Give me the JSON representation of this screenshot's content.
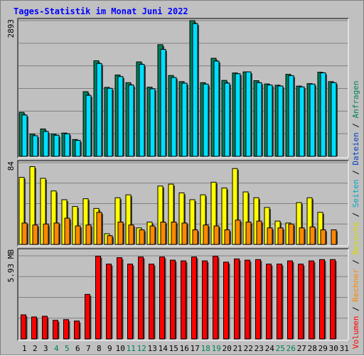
{
  "chart_data": {
    "type": "bar",
    "title": "Tages-Statistik im Monat Juni 2022",
    "categories": [
      "1",
      "2",
      "3",
      "4",
      "5",
      "6",
      "7",
      "8",
      "9",
      "10",
      "11",
      "12",
      "13",
      "14",
      "15",
      "16",
      "17",
      "18",
      "19",
      "20",
      "21",
      "22",
      "23",
      "24",
      "25",
      "26",
      "27",
      "28",
      "29",
      "30",
      "31"
    ],
    "weekend_days": [
      "4",
      "5",
      "11",
      "12",
      "18",
      "19",
      "25",
      "26"
    ],
    "panels": [
      {
        "id": "requests",
        "ymax_label": "2893",
        "ymax": 2893,
        "grid": true,
        "series": [
          {
            "name": "Anfragen",
            "color": "#00805c",
            "values": [
              937,
              474,
              584,
              474,
              497,
              359,
              1378,
              2037,
              1470,
              1734,
              1570,
              2013,
              1474,
              2380,
              1723,
              1593,
              2893,
              1570,
              2090,
              1619,
              1777,
              1800,
              1613,
              1543,
              1516,
              1748,
              1498,
              1550,
              1793,
              1593,
              null
            ]
          },
          {
            "name": "Seiten",
            "color": "#00e0ff",
            "values": [
              880,
              440,
              530,
              450,
              480,
              340,
              1300,
              1980,
              1450,
              1700,
              1520,
              1960,
              1440,
              2280,
              1680,
              1560,
              2830,
              1540,
              2030,
              1560,
              1760,
              1800,
              1570,
              1520,
              1500,
              1720,
              1480,
              1540,
              1780,
              1570,
              null
            ]
          }
        ]
      },
      {
        "id": "visits",
        "ymax_label": "84",
        "ymax": 84,
        "grid": true,
        "series": [
          {
            "name": "Besuche",
            "color": "#ffff00",
            "values": [
              69,
              80,
              68,
              55,
              46,
              39,
              47,
              37,
              11,
              48,
              51,
              17,
              23,
              60,
              62,
              53,
              46,
              51,
              64,
              58,
              78,
              54,
              48,
              38,
              24,
              22,
              43,
              48,
              33,
              null,
              null
            ]
          },
          {
            "name": "Rechner",
            "color": "#ff8800",
            "values": [
              22,
              20,
              21,
              22,
              27,
              19,
              20,
              33,
              9,
              23,
              20,
              15,
              19,
              23,
              23,
              22,
              15,
              20,
              19,
              15,
              25,
              23,
              24,
              17,
              17,
              21,
              17,
              18,
              15,
              15,
              null
            ]
          }
        ]
      },
      {
        "id": "volume",
        "ymax_label": "5.93 MB",
        "ymax": 5.93,
        "grid": true,
        "series": [
          {
            "name": "Volumen",
            "color": "#ff0000",
            "values": [
              1.72,
              1.57,
              1.62,
              1.33,
              1.38,
              1.28,
              3.18,
              5.9,
              5.34,
              5.8,
              5.34,
              5.85,
              5.34,
              5.85,
              5.62,
              5.57,
              5.85,
              5.57,
              5.9,
              5.48,
              5.71,
              5.62,
              5.66,
              5.34,
              5.34,
              5.57,
              5.34,
              5.57,
              5.66,
              5.66,
              null
            ]
          }
        ]
      }
    ],
    "legend_right": [
      {
        "text": "Volumen",
        "color": "#ff0000"
      },
      {
        "text": " / ",
        "color": "#000000"
      },
      {
        "text": "Rechner",
        "color": "#ff8800"
      },
      {
        "text": " / ",
        "color": "#000000"
      },
      {
        "text": "Besuche",
        "color": "#d8d800"
      },
      {
        "text": " / ",
        "color": "#000000"
      },
      {
        "text": "Seiten",
        "color": "#00a8c0"
      },
      {
        "text": " / ",
        "color": "#000000"
      },
      {
        "text": "Dateien",
        "color": "#0040c0"
      },
      {
        "text": " / ",
        "color": "#000000"
      },
      {
        "text": "Anfragen",
        "color": "#00805c"
      }
    ],
    "colors": {
      "background": "#c0c0c0",
      "title": "#0000ff",
      "weekend_label": "#00805c",
      "weekday_label": "#000000"
    }
  }
}
